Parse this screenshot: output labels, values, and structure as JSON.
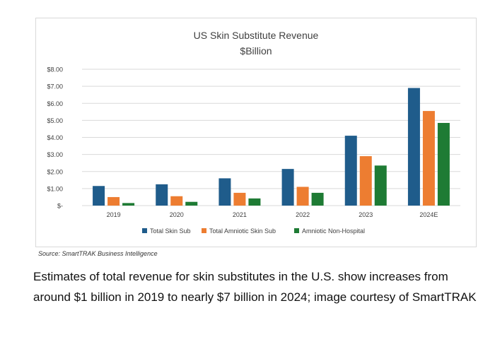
{
  "chart_data": {
    "type": "bar",
    "title": "US Skin Substitute Revenue",
    "subtitle": "$Billion",
    "categories": [
      "2019",
      "2020",
      "2021",
      "2022",
      "2023",
      "2024E"
    ],
    "series": [
      {
        "name": "Total Skin Sub",
        "color": "#1f5c8b",
        "values": [
          1.15,
          1.25,
          1.6,
          2.15,
          4.1,
          6.9
        ]
      },
      {
        "name": "Total Amniotic Skin Sub",
        "color": "#ed7d31",
        "values": [
          0.5,
          0.55,
          0.75,
          1.1,
          2.9,
          5.55
        ]
      },
      {
        "name": "Amniotic Non-Hospital",
        "color": "#1e7b34",
        "values": [
          0.15,
          0.22,
          0.42,
          0.75,
          2.35,
          4.85
        ]
      }
    ],
    "y_ticks": [
      0,
      1,
      2,
      3,
      4,
      5,
      6,
      7,
      8
    ],
    "y_tick_labels": [
      "$-",
      "$1.00",
      "$2.00",
      "$3.00",
      "$4.00",
      "$5.00",
      "$6.00",
      "$7.00",
      "$8.00"
    ],
    "ylim": [
      0,
      8
    ],
    "grid": true,
    "legend_position": "bottom"
  },
  "source_note": "Source: SmartTRAK Business Intelligence",
  "caption": "Estimates of total revenue for skin substitutes in the U.S. show increases from around $1 billion in 2019 to nearly $7 billion in 2024; image courtesy of SmartTRAK"
}
